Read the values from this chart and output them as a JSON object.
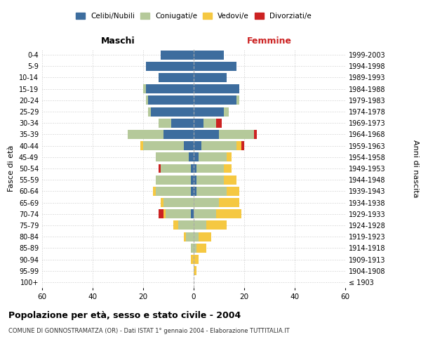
{
  "age_groups": [
    "100+",
    "95-99",
    "90-94",
    "85-89",
    "80-84",
    "75-79",
    "70-74",
    "65-69",
    "60-64",
    "55-59",
    "50-54",
    "45-49",
    "40-44",
    "35-39",
    "30-34",
    "25-29",
    "20-24",
    "15-19",
    "10-14",
    "5-9",
    "0-4"
  ],
  "birth_years": [
    "≤ 1903",
    "1904-1908",
    "1909-1913",
    "1914-1918",
    "1919-1923",
    "1924-1928",
    "1929-1933",
    "1934-1938",
    "1939-1943",
    "1944-1948",
    "1949-1953",
    "1954-1958",
    "1959-1963",
    "1964-1968",
    "1969-1973",
    "1974-1978",
    "1979-1983",
    "1984-1988",
    "1989-1993",
    "1994-1998",
    "1999-2003"
  ],
  "males": {
    "celibi": [
      0,
      0,
      0,
      0,
      0,
      0,
      1,
      0,
      1,
      1,
      1,
      2,
      4,
      12,
      9,
      17,
      18,
      19,
      14,
      19,
      13
    ],
    "coniugati": [
      0,
      0,
      0,
      1,
      3,
      6,
      10,
      12,
      14,
      14,
      12,
      13,
      16,
      14,
      5,
      1,
      1,
      1,
      0,
      0,
      0
    ],
    "vedovi": [
      0,
      0,
      1,
      0,
      1,
      2,
      1,
      1,
      1,
      0,
      0,
      0,
      1,
      0,
      0,
      0,
      0,
      0,
      0,
      0,
      0
    ],
    "divorziati": [
      0,
      0,
      0,
      0,
      0,
      0,
      2,
      0,
      0,
      0,
      1,
      0,
      0,
      0,
      0,
      0,
      0,
      0,
      0,
      0,
      0
    ]
  },
  "females": {
    "nubili": [
      0,
      0,
      0,
      0,
      0,
      0,
      0,
      0,
      1,
      1,
      1,
      2,
      3,
      10,
      4,
      12,
      17,
      18,
      13,
      17,
      12
    ],
    "coniugate": [
      0,
      0,
      0,
      1,
      2,
      5,
      9,
      10,
      12,
      11,
      11,
      11,
      14,
      14,
      5,
      2,
      1,
      0,
      0,
      0,
      0
    ],
    "vedove": [
      0,
      1,
      2,
      4,
      5,
      8,
      10,
      8,
      5,
      5,
      3,
      2,
      2,
      0,
      0,
      0,
      0,
      0,
      0,
      0,
      0
    ],
    "divorziate": [
      0,
      0,
      0,
      0,
      0,
      0,
      0,
      0,
      0,
      0,
      0,
      0,
      1,
      1,
      2,
      0,
      0,
      0,
      0,
      0,
      0
    ]
  },
  "color_celibi": "#3d6d9e",
  "color_coniugati": "#b5c99a",
  "color_vedovi": "#f5c842",
  "color_divorziati": "#cc2222",
  "title_main": "Popolazione per età, sesso e stato civile - 2004",
  "title_sub": "COMUNE DI GONNOSTRAMATZA (OR) - Dati ISTAT 1° gennaio 2004 - Elaborazione TUTTITALIA.IT",
  "xlabel_left": "Maschi",
  "xlabel_right": "Femmine",
  "ylabel_left": "Fasce di età",
  "ylabel_right": "Anni di nascita",
  "xlim": 60,
  "bg_color": "#ffffff",
  "grid_color": "#cccccc"
}
